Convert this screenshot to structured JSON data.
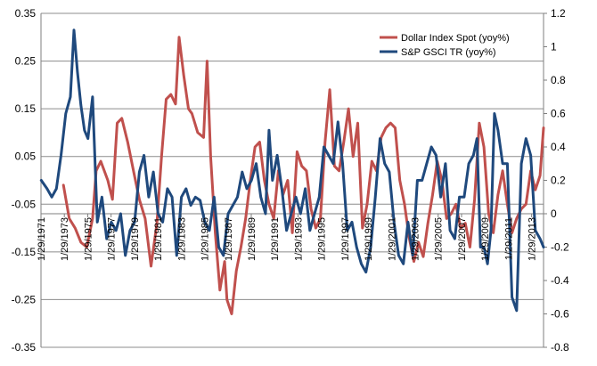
{
  "chart_data": {
    "type": "line",
    "title": "",
    "xlabel": "",
    "ylabel": "",
    "grid": true,
    "legend_position": "top-right",
    "y_left": {
      "range": [
        -0.35,
        0.35
      ],
      "ticks": [
        "0.35",
        "0.25",
        "0.15",
        "0.05",
        "-0.05",
        "-0.15",
        "-0.25",
        "-0.35"
      ],
      "tick_values": [
        0.35,
        0.25,
        0.15,
        0.05,
        -0.05,
        -0.15,
        -0.25,
        -0.35
      ]
    },
    "y_right": {
      "range": [
        -0.8,
        1.2
      ],
      "ticks": [
        "1.2",
        "1",
        "0.8",
        "0.6",
        "0.4",
        "0.2",
        "0",
        "-0.2",
        "-0.4",
        "-0.6",
        "-0.8"
      ],
      "tick_values": [
        1.2,
        1.0,
        0.8,
        0.6,
        0.4,
        0.2,
        0.0,
        -0.2,
        -0.4,
        -0.6,
        -0.8
      ]
    },
    "x_range": [
      1971.08,
      2014.1
    ],
    "x_ticks": [
      "1/29/1971",
      "1/29/1973",
      "1/29/1975",
      "1/29/1977",
      "1/29/1979",
      "1/29/1981",
      "1/29/1983",
      "1/29/1985",
      "1/29/1987",
      "1/29/1989",
      "1/29/1991",
      "1/29/1993",
      "1/29/1995",
      "1/29/1997",
      "1/29/1999",
      "1/29/2001",
      "1/29/2003",
      "1/29/2005",
      "1/29/2007",
      "1/29/2009",
      "1/29/2011",
      "1/29/2013"
    ],
    "x_tick_values": [
      1971.08,
      1973.08,
      1975.08,
      1977.08,
      1979.08,
      1981.08,
      1983.08,
      1985.08,
      1987.08,
      1989.08,
      1991.08,
      1993.08,
      1995.08,
      1997.08,
      1999.08,
      2001.08,
      2003.08,
      2005.08,
      2007.08,
      2009.08,
      2011.08,
      2013.08
    ],
    "series": [
      {
        "name": "Dollar Index Spot (yoy%)",
        "axis": "left",
        "color": "#C0504D",
        "x": [
          1973.0,
          1973.5,
          1974.0,
          1974.5,
          1975.0,
          1975.5,
          1975.8,
          1976.2,
          1976.8,
          1977.2,
          1977.6,
          1978.0,
          1978.5,
          1979.0,
          1979.5,
          1980.0,
          1980.5,
          1981.0,
          1981.4,
          1981.8,
          1982.2,
          1982.6,
          1982.9,
          1983.3,
          1983.7,
          1984.0,
          1984.5,
          1985.0,
          1985.3,
          1985.6,
          1986.0,
          1986.4,
          1986.8,
          1987.0,
          1987.4,
          1987.8,
          1988.2,
          1988.6,
          1989.0,
          1989.4,
          1989.8,
          1990.2,
          1990.6,
          1991.0,
          1991.4,
          1991.8,
          1992.2,
          1992.6,
          1993.0,
          1993.4,
          1993.8,
          1994.2,
          1994.6,
          1995.0,
          1995.4,
          1995.8,
          1996.2,
          1996.6,
          1997.0,
          1997.4,
          1997.8,
          1998.2,
          1998.6,
          1999.0,
          1999.4,
          1999.8,
          2000.2,
          2000.6,
          2001.0,
          2001.4,
          2001.8,
          2002.2,
          2002.6,
          2003.0,
          2003.4,
          2003.8,
          2004.2,
          2004.6,
          2005.0,
          2005.4,
          2005.8,
          2006.2,
          2006.6,
          2007.0,
          2007.4,
          2007.8,
          2008.2,
          2008.6,
          2009.0,
          2009.4,
          2009.8,
          2010.2,
          2010.6,
          2011.0,
          2011.4,
          2011.8,
          2012.2,
          2012.6,
          2013.0,
          2013.4,
          2013.8,
          2014.1
        ],
        "y": [
          -0.01,
          -0.08,
          -0.1,
          -0.13,
          -0.14,
          -0.08,
          0.02,
          0.04,
          0.0,
          -0.04,
          0.12,
          0.13,
          0.08,
          0.02,
          -0.04,
          -0.08,
          -0.18,
          -0.09,
          0.05,
          0.17,
          0.18,
          0.16,
          0.3,
          0.22,
          0.15,
          0.14,
          0.1,
          0.09,
          0.25,
          0.05,
          -0.11,
          -0.23,
          -0.17,
          -0.25,
          -0.28,
          -0.19,
          -0.14,
          -0.08,
          0.0,
          0.07,
          0.08,
          0.0,
          -0.05,
          -0.08,
          0.02,
          -0.03,
          0.0,
          -0.11,
          0.06,
          0.03,
          0.02,
          -0.06,
          -0.1,
          -0.08,
          0.08,
          0.19,
          0.03,
          0.02,
          0.08,
          0.15,
          0.05,
          0.12,
          -0.1,
          -0.05,
          0.04,
          0.02,
          0.09,
          0.11,
          0.12,
          0.11,
          0.0,
          -0.05,
          -0.12,
          -0.17,
          -0.13,
          -0.16,
          -0.09,
          -0.03,
          0.04,
          0.0,
          -0.08,
          -0.07,
          -0.05,
          -0.1,
          -0.09,
          -0.14,
          -0.04,
          0.12,
          0.07,
          -0.07,
          -0.11,
          -0.03,
          0.02,
          -0.05,
          -0.11,
          -0.08,
          -0.06,
          -0.05,
          0.02,
          -0.02,
          0.01,
          0.11
        ]
      },
      {
        "name": "S&P GSCI TR (yoy%)",
        "axis": "right",
        "color": "#1F497D",
        "x": [
          1971.1,
          1971.6,
          1972.0,
          1972.4,
          1972.8,
          1973.2,
          1973.6,
          1973.9,
          1974.2,
          1974.5,
          1974.8,
          1975.1,
          1975.5,
          1975.9,
          1976.3,
          1976.7,
          1977.1,
          1977.5,
          1977.9,
          1978.3,
          1978.7,
          1979.1,
          1979.5,
          1979.9,
          1980.3,
          1980.7,
          1981.1,
          1981.5,
          1981.9,
          1982.3,
          1982.7,
          1983.1,
          1983.5,
          1983.9,
          1984.3,
          1984.7,
          1985.1,
          1985.5,
          1985.9,
          1986.3,
          1986.7,
          1987.1,
          1987.5,
          1987.9,
          1988.3,
          1988.7,
          1989.1,
          1989.5,
          1989.9,
          1990.3,
          1990.6,
          1990.9,
          1991.3,
          1991.7,
          1992.1,
          1992.5,
          1992.9,
          1993.3,
          1993.7,
          1994.1,
          1994.5,
          1994.9,
          1995.3,
          1995.7,
          1996.1,
          1996.5,
          1996.9,
          1997.3,
          1997.7,
          1998.1,
          1998.5,
          1998.9,
          1999.3,
          1999.7,
          2000.1,
          2000.5,
          2000.9,
          2001.3,
          2001.7,
          2002.1,
          2002.5,
          2002.9,
          2003.3,
          2003.7,
          2004.1,
          2004.5,
          2004.9,
          2005.3,
          2005.7,
          2006.1,
          2006.5,
          2006.9,
          2007.3,
          2007.7,
          2008.1,
          2008.4,
          2008.7,
          2009.0,
          2009.3,
          2009.6,
          2009.9,
          2010.2,
          2010.6,
          2011.0,
          2011.4,
          2011.8,
          2012.2,
          2012.6,
          2013.0,
          2013.4,
          2013.8,
          2014.1
        ],
        "y": [
          0.2,
          0.15,
          0.1,
          0.15,
          0.35,
          0.6,
          0.7,
          1.1,
          0.85,
          0.65,
          0.5,
          0.45,
          0.7,
          -0.05,
          0.1,
          -0.15,
          -0.05,
          -0.1,
          0.0,
          -0.25,
          -0.1,
          -0.05,
          0.25,
          0.35,
          0.1,
          0.25,
          0.0,
          -0.05,
          0.15,
          0.1,
          -0.25,
          0.1,
          0.15,
          0.05,
          0.1,
          0.08,
          -0.05,
          -0.1,
          0.1,
          -0.2,
          -0.25,
          0.0,
          0.05,
          0.1,
          0.25,
          0.15,
          0.2,
          0.3,
          0.1,
          0.0,
          0.5,
          0.2,
          0.35,
          0.15,
          -0.1,
          0.0,
          0.1,
          0.0,
          0.15,
          -0.1,
          0.0,
          0.1,
          0.4,
          0.35,
          0.3,
          0.55,
          0.3,
          -0.1,
          -0.05,
          -0.2,
          -0.3,
          -0.35,
          -0.2,
          0.1,
          0.45,
          0.3,
          0.25,
          -0.05,
          -0.25,
          -0.3,
          -0.05,
          -0.25,
          0.2,
          0.2,
          0.3,
          0.4,
          0.35,
          0.1,
          0.3,
          -0.1,
          -0.15,
          0.1,
          0.1,
          0.3,
          0.35,
          0.45,
          -0.2,
          -0.2,
          -0.3,
          -0.1,
          0.6,
          0.5,
          0.3,
          0.3,
          -0.5,
          -0.58,
          0.3,
          0.45,
          0.35,
          -0.1,
          -0.15,
          -0.2
        ]
      }
    ]
  }
}
